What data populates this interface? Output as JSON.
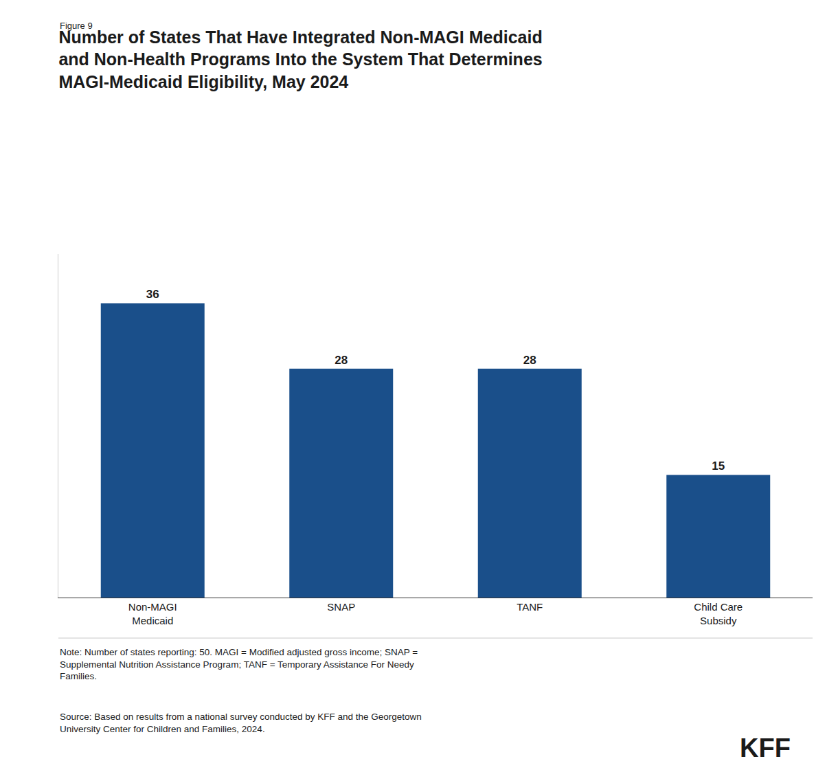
{
  "chart_data": {
    "type": "bar",
    "title": "Number of States That Have Integrated Non-MAGI Medicaid\nand Non-Health Programs Into the System That Determines\nMAGI-Medicaid Eligibility, May 2024",
    "annotations": [
      "Figure 9",
      "Note: Number of states reporting: 50. MAGI = Modified adjusted gross income; SNAP =\nSupplemental Nutrition Assistance Program; TANF = Temporary Assistance For Needy\nFamilies.",
      "Source: Based on results from a national survey conducted by KFF and the Georgetown\nUniversity Center for Children and Families, 2024.",
      "KFF"
    ],
    "categories": [
      "Non-MAGI\nMedicaid",
      "SNAP",
      "TANF",
      "Child Care\nSubsidy"
    ],
    "values": [
      36,
      28,
      28,
      15
    ],
    "color": "#1a4f8a",
    "ylim": [
      0,
      42
    ],
    "grid": false,
    "data_labels": true,
    "tick_labels": "x"
  }
}
